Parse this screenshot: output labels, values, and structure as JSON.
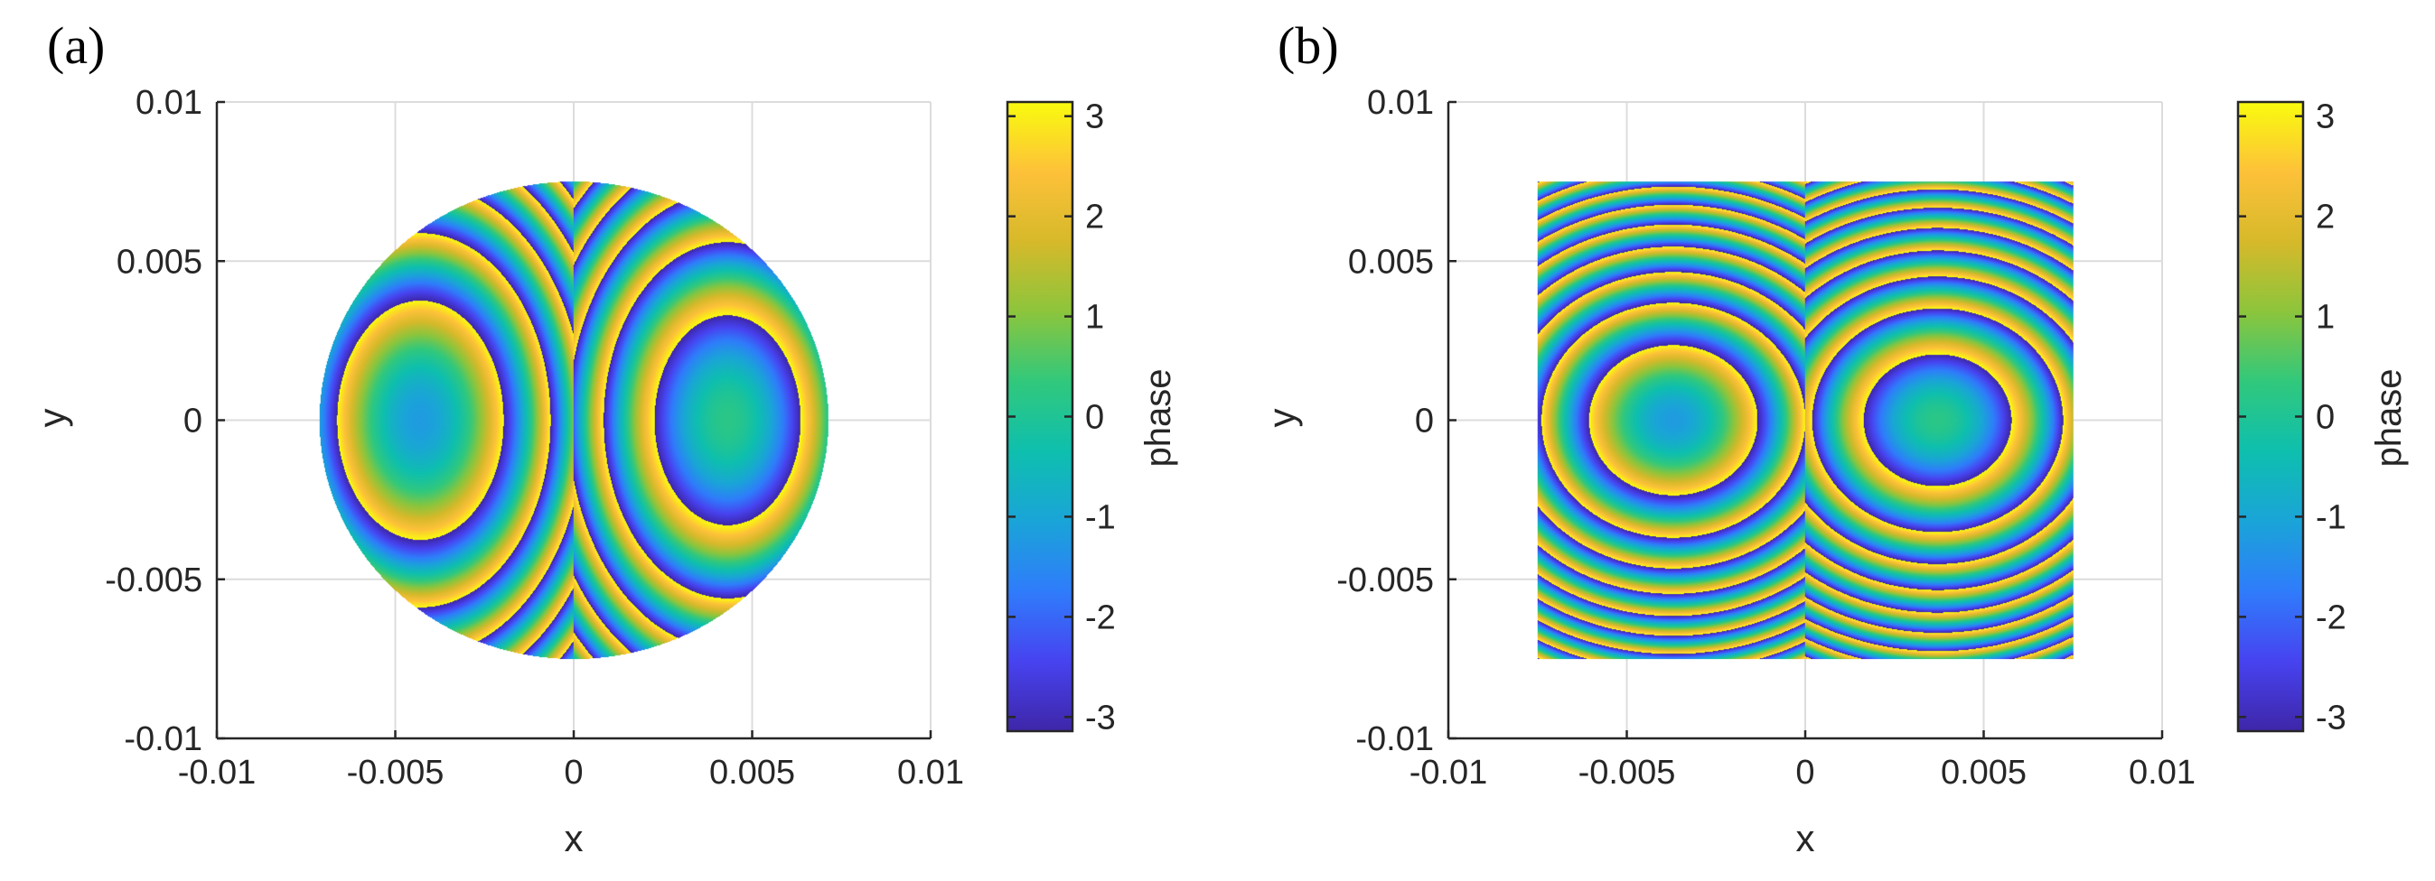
{
  "chart_data": [
    {
      "type": "heatmap",
      "panel_label": "(a)",
      "shape": "circle",
      "xlabel": "x",
      "ylabel": "y",
      "xlim": [
        -0.01,
        0.01
      ],
      "ylim": [
        -0.01,
        0.01
      ],
      "xticks": [
        -0.01,
        -0.005,
        0,
        0.005,
        0.01
      ],
      "xtick_labels": [
        "-0.01",
        "-0.005",
        "0",
        "0.005",
        "0.01"
      ],
      "yticks": [
        -0.01,
        -0.005,
        0,
        0.005,
        0.01
      ],
      "ytick_labels": [
        "-0.01",
        "-0.005",
        "0",
        "0.005",
        "0.01"
      ],
      "grid": true,
      "aperture_radius": 0.0075,
      "centers": [
        [
          -0.0043,
          0
        ],
        [
          0.0043,
          0
        ]
      ],
      "colorbar": {
        "label": "phase",
        "range": [
          -3.1416,
          3.1416
        ],
        "ticks": [
          3,
          2,
          1,
          0,
          -1,
          -2,
          -3
        ],
        "tick_labels": [
          "3",
          "2",
          "1",
          "0",
          "-1",
          "-2",
          "-3"
        ]
      }
    },
    {
      "type": "heatmap",
      "panel_label": "(b)",
      "shape": "square",
      "xlabel": "x",
      "ylabel": "y",
      "xlim": [
        -0.01,
        0.01
      ],
      "ylim": [
        -0.01,
        0.01
      ],
      "xticks": [
        -0.01,
        -0.005,
        0,
        0.005,
        0.01
      ],
      "xtick_labels": [
        "-0.01",
        "-0.005",
        "0",
        "0.005",
        "0.01"
      ],
      "yticks": [
        -0.01,
        -0.005,
        0,
        0.005,
        0.01
      ],
      "ytick_labels": [
        "-0.01",
        "-0.005",
        "0",
        "0.005",
        "0.01"
      ],
      "grid": true,
      "aperture_half_width": 0.0075,
      "centers": [
        [
          -0.0037,
          0
        ],
        [
          0.0037,
          0
        ]
      ],
      "colorbar": {
        "label": "phase",
        "range": [
          -3.1416,
          3.1416
        ],
        "ticks": [
          3,
          2,
          1,
          0,
          -1,
          -2,
          -3
        ],
        "tick_labels": [
          "3",
          "2",
          "1",
          "0",
          "-1",
          "-2",
          "-3"
        ]
      }
    }
  ],
  "colors": {
    "axis": "#262626",
    "grid": "#dcdcdc",
    "parula": [
      "#3e26a8",
      "#4743f0",
      "#2f7cfb",
      "#1aa4d8",
      "#0ebfae",
      "#31c87c",
      "#8cc53c",
      "#d6b92a",
      "#fdc139",
      "#f9fb0e"
    ]
  }
}
